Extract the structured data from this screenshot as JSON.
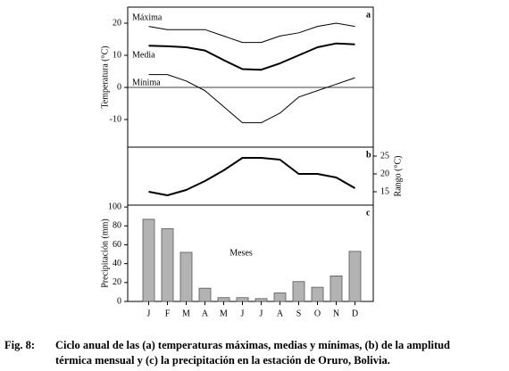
{
  "chart_data": [
    {
      "type": "line",
      "panel_label": "a",
      "ylabel": "Temperatura (°C)",
      "categories": [
        "J",
        "F",
        "M",
        "A",
        "M",
        "J",
        "J",
        "A",
        "S",
        "O",
        "N",
        "D"
      ],
      "series": [
        {
          "name": "Máxima",
          "color": "#000000",
          "line_width": 1,
          "values": [
            19,
            18,
            18,
            18,
            16,
            14,
            14,
            16,
            17,
            19,
            20,
            19
          ]
        },
        {
          "name": "Media",
          "color": "#000000",
          "line_width": 2,
          "values": [
            13,
            12.8,
            12.5,
            11.5,
            8.5,
            5.7,
            5.5,
            7.5,
            10,
            12.5,
            13.7,
            13.4
          ]
        },
        {
          "name": "Mínima",
          "color": "#000000",
          "line_width": 1,
          "values": [
            4,
            4,
            2,
            -1,
            -6,
            -11,
            -11,
            -8,
            -3,
            -1,
            1,
            3
          ]
        }
      ],
      "reference_line": 0,
      "ylim": [
        -18.6,
        25
      ],
      "yticks": [
        -10,
        0,
        10,
        20
      ],
      "y_axis_side": "left"
    },
    {
      "type": "line",
      "panel_label": "b",
      "ylabel": "Rango (°C)",
      "categories": [
        "J",
        "F",
        "M",
        "A",
        "M",
        "J",
        "J",
        "A",
        "S",
        "O",
        "N",
        "D"
      ],
      "series": [
        {
          "color": "#000000",
          "line_width": 2,
          "values": [
            15,
            14,
            15.5,
            18,
            21,
            24.5,
            24.5,
            24,
            20,
            20,
            19,
            16
          ]
        }
      ],
      "ylim": [
        11.25,
        27.5
      ],
      "yticks": [
        15,
        20,
        25
      ],
      "y_axis_side": "right"
    },
    {
      "type": "bar",
      "panel_label": "c",
      "ylabel": "Precipitación (mm)",
      "xlabel": "Meses",
      "categories": [
        "J",
        "F",
        "M",
        "A",
        "M",
        "J",
        "J",
        "A",
        "S",
        "O",
        "N",
        "D"
      ],
      "values": [
        87,
        77,
        52,
        14,
        4,
        4,
        3,
        9,
        21,
        15,
        27,
        53
      ],
      "color": "#b3b3b3",
      "ylim": [
        0,
        102
      ],
      "yticks": [
        0,
        20,
        40,
        60,
        80,
        100
      ],
      "y_axis_side": "left"
    }
  ],
  "caption": {
    "label": "Fig. 8:",
    "lines": [
      "Ciclo anual de las (a) temperaturas máximas, medias y mínimas, (b) de la amplitud",
      "térmica mensual y (c) la precipitación en la estación de Oruro, Bolivia."
    ]
  }
}
